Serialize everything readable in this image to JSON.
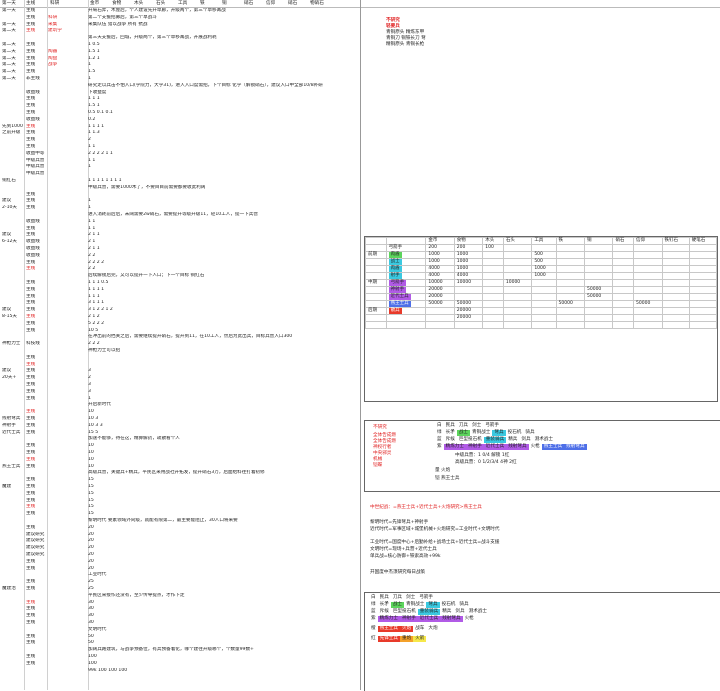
{
  "header": {
    "cols": [
      "第一天",
      "主线",
      "科研",
      "金币",
      "食物",
      "木头",
      "石头",
      "工具",
      "铁",
      "铜",
      "硝石",
      "信仰",
      "硝石",
      "物硝石"
    ]
  },
  "rows": [
    {
      "a": "第一天",
      "b": "主线",
      "c": "",
      "note": "开局石斧，木屋后，个人建设先升草廊，升级两个，第三个草移篝战",
      "cls": ""
    },
    {
      "a": "",
      "b": "主线",
      "c": "科研",
      "note": "第二个支援招募后，第三个草战斗",
      "cls": ""
    },
    {
      "a": "第一天",
      "b": "主线",
      "c": "采集",
      "note": "采集队伍 猎以战争 所有 抗战",
      "cls": ""
    },
    {
      "a": "第二天",
      "b": "主线",
      "c": "建筑学",
      "note": "",
      "cls": "red"
    },
    {
      "a": "",
      "b": "",
      "c": "",
      "note": "第三天支援后，回城，升级两个，第三个草移篝战，开展战利耗",
      "cls": ""
    },
    {
      "a": "第二天",
      "b": "主线",
      "c": "",
      "note": "1   0.5",
      "cls": ""
    },
    {
      "a": "第二天",
      "b": "主线",
      "c": "陶器",
      "note": "1.5        1",
      "cls": ""
    },
    {
      "a": "第二天",
      "b": "主线",
      "c": "陶盘",
      "note": "1.2        1",
      "cls": ""
    },
    {
      "a": "第二天",
      "b": "主线",
      "c": "战争",
      "note": "           1",
      "cls": ""
    },
    {
      "a": "第二天",
      "b": "主线",
      "c": "",
      "note": "1.5",
      "cls": ""
    },
    {
      "a": "第二天",
      "b": "非主线",
      "c": "",
      "note": "1",
      "cls": ""
    },
    {
      "a": "",
      "b": "",
      "c": "",
      "note": "研究走以兵击不怕入口(学院力，大学31)，进入入口度需招，下个目标 化学（解锁硝石），建议入口中全部10/8补研",
      "cls": ""
    },
    {
      "a": "",
      "b": "收益线",
      "c": "",
      "note": "下收益度",
      "cls": ""
    },
    {
      "a": "",
      "b": "主线",
      "c": "",
      "note": "1    1              1",
      "cls": ""
    },
    {
      "a": "",
      "b": "主线",
      "c": "",
      "note": "1.5    1",
      "cls": ""
    },
    {
      "a": "",
      "b": "主线",
      "c": "",
      "note": "0.5   0.1           0.1",
      "cls": ""
    },
    {
      "a": "",
      "b": "收益线",
      "c": "",
      "note": "                          0.2",
      "cls": ""
    },
    {
      "a": "先到1000",
      "b": "主线",
      "c": "",
      "note": "1   1            1      1",
      "cls": ""
    },
    {
      "a": "之前升级",
      "b": "主线",
      "c": "",
      "note": "1           1.3",
      "cls": ""
    },
    {
      "a": "",
      "b": "主线",
      "c": "",
      "note": "2",
      "cls": ""
    },
    {
      "a": "",
      "b": "主线",
      "c": "",
      "note": "1              1",
      "cls": ""
    },
    {
      "a": "",
      "b": "收益中等",
      "c": "",
      "note": "2   2  2    2        1     1",
      "cls": ""
    },
    {
      "a": "",
      "b": "中级兵营",
      "c": "",
      "note": "1           1",
      "cls": ""
    },
    {
      "a": "",
      "b": "中级兵营",
      "c": "",
      "note": "1",
      "cls": ""
    },
    {
      "a": "",
      "b": "中级兵营",
      "c": "",
      "note": "",
      "cls": ""
    },
    {
      "a": "铜红石",
      "b": "",
      "c": "",
      "note": "1   1   1     1     1    1   1   1",
      "cls": ""
    },
    {
      "a": "",
      "b": "",
      "c": "",
      "note": "中级兵营，需要1000木了，不要目目前需要都要收此利阔",
      "cls": ""
    },
    {
      "a": "",
      "b": "主线",
      "c": "",
      "note": "",
      "cls": ""
    },
    {
      "a": "建议",
      "b": "主线",
      "c": "",
      "note": "1",
      "cls": ""
    },
    {
      "a": "2-10天",
      "b": "主线",
      "c": "",
      "note": "1",
      "cls": ""
    },
    {
      "a": "",
      "b": "",
      "c": "",
      "note": "进入消耗前后后，未阔需要2w硝石，需要提升等级升级11，轻10工人，提一下兵营",
      "cls": ""
    },
    {
      "a": "",
      "b": "收益线",
      "c": "",
      "note": "1   1",
      "cls": ""
    },
    {
      "a": "",
      "b": "主线",
      "c": "",
      "note": "1   1",
      "cls": ""
    },
    {
      "a": "建议",
      "b": "主线",
      "c": "",
      "note": "2   1        1",
      "cls": ""
    },
    {
      "a": "6-12天",
      "b": "收益线",
      "c": "",
      "note": "2   1",
      "cls": ""
    },
    {
      "a": "",
      "b": "收益线",
      "c": "",
      "note": "           2      1    1",
      "cls": ""
    },
    {
      "a": "",
      "b": "收益线",
      "c": "",
      "note": "2   2",
      "cls": ""
    },
    {
      "a": "",
      "b": "主线",
      "c": "",
      "note": "2   2      2     2",
      "cls": ""
    },
    {
      "a": "",
      "b": "主线",
      "c": "",
      "note": "2         2",
      "cls": ""
    },
    {
      "a": "",
      "b": "",
      "c": "",
      "note": "后续解锁后完，又可以提升一下人口；下一个目标 铜红石",
      "cls": ""
    },
    {
      "a": "",
      "b": "主线",
      "c": "",
      "note": "1          1      1         0.5",
      "cls": ""
    },
    {
      "a": "",
      "b": "主线",
      "c": "",
      "note": "1          1       1   1",
      "cls": ""
    },
    {
      "a": "",
      "b": "主线",
      "c": "",
      "note": "1                   1   1",
      "cls": ""
    },
    {
      "a": "",
      "b": "主线",
      "c": "",
      "note": "3   1       1     1",
      "cls": ""
    },
    {
      "a": "建议",
      "b": "主线",
      "c": "",
      "note": "3   1   2    2    1   2",
      "cls": ""
    },
    {
      "a": "8-15天",
      "b": "主线",
      "c": "",
      "note": "2   1          2",
      "cls": ""
    },
    {
      "a": "",
      "b": "主线",
      "c": "",
      "note": "5   2    2     2",
      "cls": ""
    },
    {
      "a": "",
      "b": "主线",
      "c": "",
      "note": "10        5",
      "cls": ""
    },
    {
      "a": "",
      "b": "",
      "c": "",
      "note": "在冲出前的挡关之后，需要继续提升硝石，提升到11，在10工人，然后为此出兵，目标兵营入口300",
      "cls": ""
    },
    {
      "a": "神枪力士",
      "b": "科技线",
      "c": "",
      "note": "2       2       2",
      "cls": ""
    },
    {
      "a": "",
      "b": "",
      "c": "",
      "note": "神枪力士可以招",
      "cls": ""
    },
    {
      "a": "",
      "b": "主线",
      "c": "",
      "note": "",
      "cls": ""
    },
    {
      "a": "",
      "b": "主线",
      "c": "",
      "note": "",
      "cls": ""
    },
    {
      "a": "建议",
      "b": "主线",
      "c": "",
      "note": "3",
      "cls": ""
    },
    {
      "a": "20天+",
      "b": "主线",
      "c": "",
      "note": "2",
      "cls": ""
    },
    {
      "a": "",
      "b": "主线",
      "c": "",
      "note": "3",
      "cls": ""
    },
    {
      "a": "",
      "b": "主线",
      "c": "",
      "note": "3",
      "cls": ""
    },
    {
      "a": "",
      "b": "主线",
      "c": "",
      "note": "1",
      "cls": ""
    },
    {
      "a": "",
      "b": "",
      "c": "",
      "note": "开启新时代",
      "cls": ""
    },
    {
      "a": "",
      "b": "主线",
      "c": "",
      "note": "10",
      "cls": ""
    },
    {
      "a": "残射弩兵",
      "b": "主线",
      "c": "",
      "note": "10          3",
      "cls": ""
    },
    {
      "a": "神射手",
      "b": "主线",
      "c": "",
      "note": "10          3          3",
      "cls": ""
    },
    {
      "a": "近代士兵",
      "b": "主线",
      "c": "",
      "note": "15          5",
      "cls": ""
    },
    {
      "a": "",
      "b": "",
      "c": "",
      "note": "加速不能够，待在这，精算解药，疏散看个人",
      "cls": ""
    },
    {
      "a": "",
      "b": "主线",
      "c": "",
      "note": "10",
      "cls": ""
    },
    {
      "a": "",
      "b": "主线",
      "c": "",
      "note": "10",
      "cls": ""
    },
    {
      "a": "",
      "b": "主线",
      "c": "",
      "note": "10",
      "cls": ""
    },
    {
      "a": "燕王士兵",
      "b": "主线",
      "c": "",
      "note": "10",
      "cls": ""
    },
    {
      "a": "",
      "b": "",
      "c": "",
      "note": "高级兵营，关键兵+精兵，平民区采用战社开拓发，提升硝石3万，后面给料往打着初修",
      "cls": ""
    },
    {
      "a": "",
      "b": "主线",
      "c": "",
      "note": "15",
      "cls": ""
    },
    {
      "a": "魔建",
      "b": "主线",
      "c": "",
      "note": "15",
      "cls": ""
    },
    {
      "a": "",
      "b": "主线",
      "c": "",
      "note": "15",
      "cls": ""
    },
    {
      "a": "",
      "b": "主线",
      "c": "",
      "note": "15",
      "cls": ""
    },
    {
      "a": "",
      "b": "主线",
      "c": "",
      "note": "15",
      "cls": ""
    },
    {
      "a": "",
      "b": "主线",
      "c": "",
      "note": "15",
      "cls": ""
    },
    {
      "a": "",
      "b": "",
      "c": "",
      "note": "黎明时代    要素领域外同级，就能有限第二，最主要能阻止，30人口将来要",
      "cls": ""
    },
    {
      "a": "",
      "b": "主线",
      "c": "",
      "note": "20",
      "cls": ""
    },
    {
      "a": "",
      "b": "建议研究",
      "c": "",
      "note": "20",
      "cls": ""
    },
    {
      "a": "",
      "b": "建议研究",
      "c": "",
      "note": "20",
      "cls": ""
    },
    {
      "a": "",
      "b": "建议研究",
      "c": "",
      "note": "20",
      "cls": ""
    },
    {
      "a": "",
      "b": "建议研究",
      "c": "",
      "note": "20",
      "cls": ""
    },
    {
      "a": "",
      "b": "主线",
      "c": "",
      "note": "20",
      "cls": ""
    },
    {
      "a": "",
      "b": "主线",
      "c": "",
      "note": "20",
      "cls": ""
    },
    {
      "a": "",
      "b": "",
      "c": "",
      "note": "工业时代",
      "cls": ""
    },
    {
      "a": "",
      "b": "主线",
      "c": "",
      "note": "25",
      "cls": ""
    },
    {
      "a": "魔建治",
      "b": "主线",
      "c": "",
      "note": "25",
      "cls": ""
    },
    {
      "a": "",
      "b": "",
      "c": "",
      "note": "平民区采接作还没有，至少传导提点，才作下走",
      "cls": ""
    },
    {
      "a": "",
      "b": "主线",
      "c": "",
      "note": "30",
      "cls": ""
    },
    {
      "a": "",
      "b": "主线",
      "c": "",
      "note": "30",
      "cls": ""
    },
    {
      "a": "",
      "b": "主线",
      "c": "",
      "note": "30",
      "cls": ""
    },
    {
      "a": "",
      "b": "主线",
      "c": "",
      "note": "30",
      "cls": ""
    },
    {
      "a": "",
      "b": "",
      "c": "",
      "note": "文明时代",
      "cls": ""
    },
    {
      "a": "",
      "b": "主线",
      "c": "",
      "note": "50",
      "cls": ""
    },
    {
      "a": "",
      "b": "主线",
      "c": "",
      "note": "50",
      "cls": ""
    },
    {
      "a": "",
      "b": "",
      "c": "",
      "note": "加阔兵路建筑，与战争预备位，有兵预备着化，哪个建往升级哪个，个数量99数+",
      "cls": ""
    },
    {
      "a": "",
      "b": "主线",
      "c": "",
      "note": "100",
      "cls": ""
    },
    {
      "a": "",
      "b": "主线",
      "c": "",
      "note": "100",
      "cls": ""
    },
    {
      "a": "",
      "b": "",
      "c": "",
      "note": "99k       100    100     100",
      "cls": ""
    }
  ],
  "right_notes": {
    "top_title": "不研究",
    "top_sub": "轻要兵",
    "top_lines": [
      "青铜原头 精炼东甲",
      "青铜刀 铜铁长刀 弩",
      "精铜原头 青铜长枪"
    ]
  },
  "unit_table": {
    "headers": [
      "",
      "",
      "金币",
      "食物",
      "木头",
      "石头",
      "工具",
      "铁",
      "铜",
      "硝石",
      "信仰",
      "铁钉石",
      "硬笔石"
    ],
    "rows": [
      [
        "",
        "弓箭手",
        "200",
        "200",
        "100",
        "",
        "",
        "",
        "",
        "",
        "",
        "",
        ""
      ],
      [
        "前期",
        "肉盾",
        "1000",
        "1000",
        "",
        "",
        "500",
        "",
        "",
        "",
        "",
        "",
        ""
      ],
      [
        "",
        "战士",
        "1000",
        "1000",
        "",
        "",
        "500",
        "",
        "",
        "",
        "",
        "",
        ""
      ],
      [
        "",
        "肉盾",
        "4000",
        "1000",
        "",
        "",
        "1000",
        "",
        "",
        "",
        "",
        "",
        ""
      ],
      [
        "",
        "射手",
        "4000",
        "4000",
        "",
        "",
        "1000",
        "",
        "",
        "",
        "",
        "",
        ""
      ],
      [
        "中期",
        "弓箭手",
        "10000",
        "10000",
        "",
        "10000",
        "",
        "",
        "",
        "",
        "",
        "",
        ""
      ],
      [
        "",
        "神射手",
        "20000",
        "",
        "",
        "",
        "",
        "",
        "50000",
        "",
        "",
        "",
        ""
      ],
      [
        "",
        "近代士兵",
        "20000",
        "",
        "",
        "",
        "",
        "",
        "50000",
        "",
        "",
        "",
        ""
      ],
      [
        "",
        "燕王士兵",
        "50000",
        "50000",
        "",
        "",
        "",
        "50000",
        "",
        "",
        "50000",
        "",
        ""
      ],
      [
        "后期",
        "散兵",
        "",
        "20000",
        "",
        "",
        "",
        "",
        "",
        "",
        "",
        "",
        ""
      ],
      [
        "",
        "",
        "",
        "20000",
        "",
        "",
        "",
        "",
        "",
        "",
        "",
        "",
        ""
      ],
      [
        "",
        "",
        "",
        "",
        "",
        "",
        "",
        "",
        "",
        "",
        "",
        "",
        ""
      ]
    ]
  },
  "legend_table": {
    "rows": [
      [
        "",
        "弓箭手",
        "兵员",
        "",
        "",
        "",
        ""
      ],
      [
        "",
        "长矛",
        "精兵",
        "草原战士",
        "战斗机器",
        "",
        "",
        ""
      ]
    ]
  },
  "red_list": [
    "不研究",
    "全体告成燃",
    "全体告成燃",
    "神权行者",
    "中央邪灵",
    "机械",
    "铠蝶"
  ],
  "bottom_notes": [
    "中级兵营：1  0/4  解锁  1红",
    "高级兵营：0 1/2/3/4 4神  2红",
    "量          火炮",
    "铠          燕王士兵"
  ],
  "flow_notes": [
    "中世纪战：=燕王士兵+近代士兵+火炮研究>燕王士兵",
    "黎明时代=先锋弩兵+神射手",
    "近代时代=军事区域+城堡机械+火炮研究=工业时代+文明时代",
    "工业时代=国度中心+后勤补给+战场士兵+近代士兵=战斗支援",
    "文明时代=现场+兵营+近代士兵",
    "单兵战=核心防御+铁索高效+99k"
  ],
  "flow_footer": "开国度中杰须研究每日战策",
  "bottom_table": {
    "rows": [
      [
        "弓箭手",
        "刀兵",
        "弓兵",
        "骑兵",
        "刀兵"
      ],
      [
        "先锋弩兵",
        "弩兵",
        "长矛",
        "精兵",
        "草原战士",
        "战斗机器"
      ],
      [
        "战士",
        "火枪",
        "大炮",
        "长炮",
        "剑兵"
      ],
      [
        "",
        "",
        "精炼",
        "甲胄",
        "精兵",
        "骑兵"
      ],
      [
        "近代士兵",
        "火炮",
        "燕王士兵",
        "",
        "战车",
        "大炮"
      ],
      [
        "先锋士兵",
        "重炮",
        "火箭",
        "",
        "",
        ""
      ]
    ]
  }
}
